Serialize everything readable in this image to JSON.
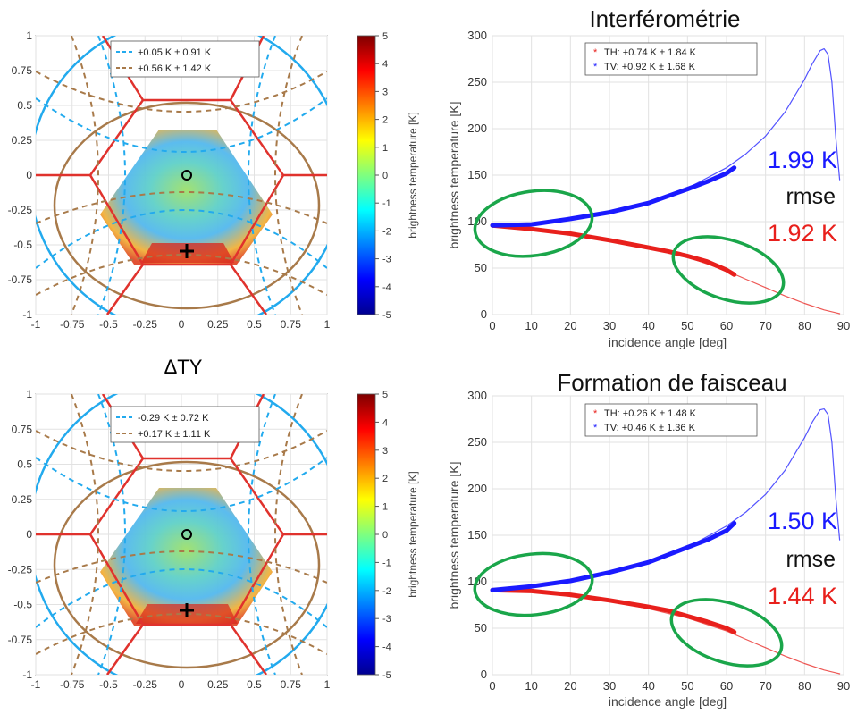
{
  "colors": {
    "th_red": "#e8201c",
    "tv_blue": "#1a1aff",
    "ellipse_green": "#1aa64a",
    "hex_red": "#e0322d",
    "circle_cyan": "#22aaee",
    "circle_brown": "#a87a4a",
    "axis_gray": "#555555"
  },
  "map_panels": [
    {
      "label": "",
      "legend": [
        "+0.05 K ± 0.91 K",
        "+0.56 K ± 1.42 K"
      ],
      "colorbar_label": "brightness temperature [K]"
    },
    {
      "label": "ΔTY",
      "legend": [
        "-0.29 K ± 0.72 K",
        "+0.17 K ± 1.11 K"
      ],
      "colorbar_label": "brightness temperature [K]"
    }
  ],
  "map_axes": {
    "ticks": [
      "-1",
      "-0.75",
      "-0.5",
      "-0.25",
      "0",
      "0.25",
      "0.5",
      "0.75",
      "1"
    ],
    "colorbar_ticks": [
      "5",
      "4",
      "3",
      "2",
      "1",
      "0",
      "-1",
      "-2",
      "-3",
      "-4",
      "-5"
    ]
  },
  "line_panels": [
    {
      "title": "Interférométrie",
      "legend": [
        "TH: +0.74 K ± 1.84 K",
        "TV: +0.92 K ± 1.68 K"
      ],
      "rmse_tv": "1.99 K",
      "rmse_word": "rmse",
      "rmse_th": "1.92 K"
    },
    {
      "title": "Formation de faisceau",
      "legend": [
        "TH: +0.26 K ± 1.48 K",
        "TV: +0.46 K ± 1.36 K"
      ],
      "rmse_tv": "1.50 K",
      "rmse_word": "rmse",
      "rmse_th": "1.44 K"
    }
  ],
  "line_axes": {
    "xlabel": "incidence angle [deg]",
    "ylabel": "brightness temperature [K]",
    "xticks": [
      "0",
      "10",
      "20",
      "30",
      "40",
      "50",
      "60",
      "70",
      "80",
      "90"
    ],
    "yticks": [
      "0",
      "50",
      "100",
      "150",
      "200",
      "250",
      "300"
    ]
  },
  "chart_data": [
    {
      "type": "heatmap",
      "title": "",
      "xlim": [
        -1,
        1
      ],
      "ylim": [
        -1,
        1
      ],
      "xticks": [
        -1,
        -0.75,
        -0.5,
        -0.25,
        0,
        0.25,
        0.5,
        0.75,
        1
      ],
      "yticks": [
        -1,
        -0.75,
        -0.5,
        -0.25,
        0,
        0.25,
        0.5,
        0.75,
        1
      ],
      "colorbar": {
        "label": "brightness temperature [K]",
        "range": [
          -5,
          5
        ]
      },
      "legend": [
        "+0.05 K ± 0.91 K",
        "+0.56 K ± 1.42 K"
      ],
      "markers": [
        {
          "type": "circle",
          "x": 0,
          "y": 0
        },
        {
          "type": "cross",
          "x": 0,
          "y": -0.54
        }
      ],
      "grid": true
    },
    {
      "type": "line",
      "title": "Interférométrie",
      "xlabel": "incidence angle [deg]",
      "ylabel": "brightness temperature [K]",
      "xlim": [
        0,
        90
      ],
      "ylim": [
        0,
        300
      ],
      "grid": true,
      "legend_position": "top-center",
      "series": [
        {
          "name": "TH: +0.74 K ± 1.84 K",
          "style": "measured",
          "x": [
            0,
            10,
            20,
            30,
            40,
            45,
            50,
            55,
            60,
            62
          ],
          "y": [
            96,
            92,
            87,
            80,
            72,
            68,
            63,
            57,
            48,
            43
          ]
        },
        {
          "name": "TV: +0.92 K ± 1.68 K",
          "style": "measured",
          "x": [
            0,
            10,
            20,
            30,
            40,
            50,
            55,
            60,
            62
          ],
          "y": [
            96,
            97,
            103,
            110,
            120,
            135,
            143,
            152,
            158
          ]
        },
        {
          "style": "model",
          "x": [
            0,
            10,
            20,
            30,
            40,
            50,
            60,
            65,
            70,
            75,
            80,
            85,
            88,
            89
          ],
          "y": [
            96,
            93,
            88,
            80,
            72,
            62,
            47,
            38,
            29,
            20,
            12,
            5,
            2,
            1
          ]
        },
        {
          "style": "model",
          "x": [
            0,
            10,
            20,
            30,
            40,
            50,
            60,
            65,
            70,
            75,
            80,
            82,
            84,
            85,
            86,
            87,
            88,
            89
          ],
          "y": [
            96,
            97,
            102,
            110,
            121,
            136,
            158,
            173,
            192,
            218,
            253,
            270,
            284,
            286,
            280,
            250,
            190,
            145
          ]
        }
      ],
      "annotations": [
        "1.99 K",
        "rmse",
        "1.92 K"
      ]
    },
    {
      "type": "heatmap",
      "title": "ΔTY",
      "xlim": [
        -1,
        1
      ],
      "ylim": [
        -1,
        1
      ],
      "xticks": [
        -1,
        -0.75,
        -0.5,
        -0.25,
        0,
        0.25,
        0.5,
        0.75,
        1
      ],
      "yticks": [
        -1,
        -0.75,
        -0.5,
        -0.25,
        0,
        0.25,
        0.5,
        0.75,
        1
      ],
      "colorbar": {
        "label": "brightness temperature [K]",
        "range": [
          -5,
          5
        ]
      },
      "legend": [
        "-0.29 K ± 0.72 K",
        "+0.17 K ± 1.11 K"
      ],
      "markers": [
        {
          "type": "circle",
          "x": 0,
          "y": 0
        },
        {
          "type": "cross",
          "x": 0,
          "y": -0.54
        }
      ],
      "grid": true
    },
    {
      "type": "line",
      "title": "Formation de faisceau",
      "xlabel": "incidence angle [deg]",
      "ylabel": "brightness temperature [K]",
      "xlim": [
        0,
        90
      ],
      "ylim": [
        0,
        300
      ],
      "grid": true,
      "legend_position": "top-center",
      "series": [
        {
          "name": "TH: +0.26 K ± 1.48 K",
          "style": "measured",
          "x": [
            0,
            10,
            20,
            30,
            40,
            45,
            50,
            55,
            60,
            62
          ],
          "y": [
            91,
            90,
            86,
            80,
            73,
            69,
            63,
            57,
            50,
            46
          ]
        },
        {
          "name": "TV: +0.46 K ± 1.36 K",
          "style": "measured",
          "x": [
            0,
            10,
            20,
            30,
            40,
            50,
            55,
            60,
            62
          ],
          "y": [
            91,
            95,
            101,
            110,
            121,
            137,
            145,
            155,
            163
          ]
        },
        {
          "style": "model",
          "x": [
            0,
            10,
            20,
            30,
            40,
            50,
            60,
            65,
            70,
            75,
            80,
            85,
            88,
            89
          ],
          "y": [
            91,
            89,
            85,
            79,
            71,
            61,
            47,
            38,
            29,
            20,
            12,
            5,
            2,
            1
          ]
        },
        {
          "style": "model",
          "x": [
            0,
            10,
            20,
            30,
            40,
            50,
            60,
            65,
            70,
            75,
            80,
            82,
            84,
            85,
            86,
            87,
            88,
            89
          ],
          "y": [
            91,
            94,
            101,
            110,
            121,
            137,
            160,
            175,
            194,
            220,
            255,
            272,
            285,
            286,
            280,
            250,
            190,
            145
          ]
        }
      ],
      "annotations": [
        "1.50 K",
        "rmse",
        "1.44 K"
      ]
    }
  ]
}
